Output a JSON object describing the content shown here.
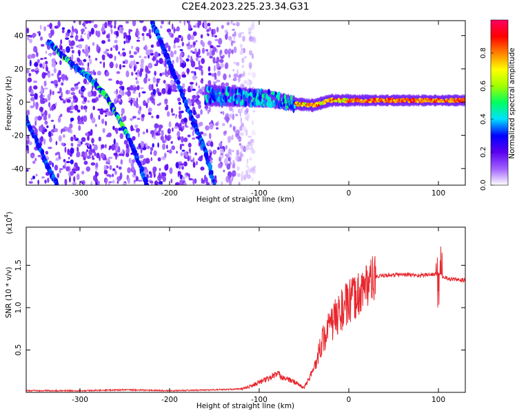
{
  "title": "C2E4.2023.225.23.34.G31",
  "chart_data": [
    {
      "type": "heatmap",
      "xlabel": "Height of straight line (km)",
      "ylabel": "Frequency (Hz)",
      "xlim": [
        -360,
        130
      ],
      "ylim": [
        -50,
        49
      ],
      "xticks": [
        -300,
        -200,
        -100,
        0,
        100
      ],
      "yticks": [
        -40,
        -20,
        0,
        20,
        40
      ],
      "colorbar": {
        "label": "Normalized spectral amplitude",
        "range": [
          0.0,
          1.0
        ],
        "ticks": [
          "0.0",
          "0.2",
          "0.4",
          "0.6",
          "0.8"
        ],
        "tick_values": [
          0.0,
          0.2,
          0.4,
          0.6,
          0.8
        ],
        "colors": [
          "#ffffff",
          "#a060ff",
          "#5a00f0",
          "#0000ff",
          "#00e0ff",
          "#00ff60",
          "#a0ff00",
          "#ffff00",
          "#ff8000",
          "#ff0000",
          "#ff0060"
        ]
      },
      "features": [
        {
          "name": "noise band",
          "x_range": [
            -360,
            -115
          ],
          "y_range": [
            -50,
            49
          ]
        },
        {
          "name": "descending track",
          "points": [
            [
              -335,
              36
            ],
            [
              -310,
              23
            ],
            [
              -290,
              15
            ],
            [
              -270,
              3
            ],
            [
              -255,
              -12
            ],
            [
              -240,
              -28
            ],
            [
              -225,
              -50
            ]
          ]
        },
        {
          "name": "descending track",
          "points": [
            [
              -220,
              49
            ],
            [
              -205,
              30
            ],
            [
              -190,
              10
            ],
            [
              -175,
              -10
            ],
            [
              -160,
              -30
            ],
            [
              -150,
              -50
            ]
          ]
        },
        {
          "name": "descending track",
          "points": [
            [
              -360,
              -10
            ],
            [
              -345,
              -28
            ],
            [
              -330,
              -45
            ],
            [
              -325,
              -50
            ]
          ]
        },
        {
          "name": "ridge",
          "points": [
            [
              -160,
              4
            ],
            [
              -120,
              3
            ],
            [
              -90,
              2
            ],
            [
              -60,
              -1
            ],
            [
              -40,
              -2
            ],
            [
              -20,
              1
            ],
            [
              0,
              1
            ],
            [
              40,
              1
            ],
            [
              80,
              1
            ],
            [
              130,
              1
            ]
          ]
        }
      ]
    },
    {
      "type": "line",
      "xlabel": "Height of straight line (km)",
      "ylabel": "SNR (10 * v/v)",
      "scale_label": "(x10",
      "scale_exp": "4",
      "scale_close": ")",
      "xlim": [
        -360,
        130
      ],
      "ylim": [
        0.0,
        1.95
      ],
      "xticks": [
        -300,
        -200,
        -100,
        0,
        100
      ],
      "yticks": [
        "0.5",
        "1.0",
        "1.5"
      ],
      "ytick_values": [
        0.5,
        1.0,
        1.5
      ],
      "color": "#e8262c",
      "series": [
        {
          "x": [
            -360,
            -300,
            -250,
            -200,
            -150,
            -120,
            -110,
            -100,
            -90,
            -80,
            -70,
            -60,
            -50,
            -40,
            -30,
            -20,
            -10,
            0,
            10,
            20,
            30,
            40,
            60,
            80,
            100,
            110,
            120,
            130
          ],
          "values": [
            0.02,
            0.02,
            0.03,
            0.02,
            0.03,
            0.04,
            0.07,
            0.12,
            0.16,
            0.22,
            0.16,
            0.12,
            0.05,
            0.25,
            0.6,
            0.8,
            0.95,
            1.05,
            1.15,
            1.28,
            1.36,
            1.38,
            1.39,
            1.38,
            1.4,
            1.34,
            1.33,
            1.32
          ]
        }
      ]
    }
  ]
}
